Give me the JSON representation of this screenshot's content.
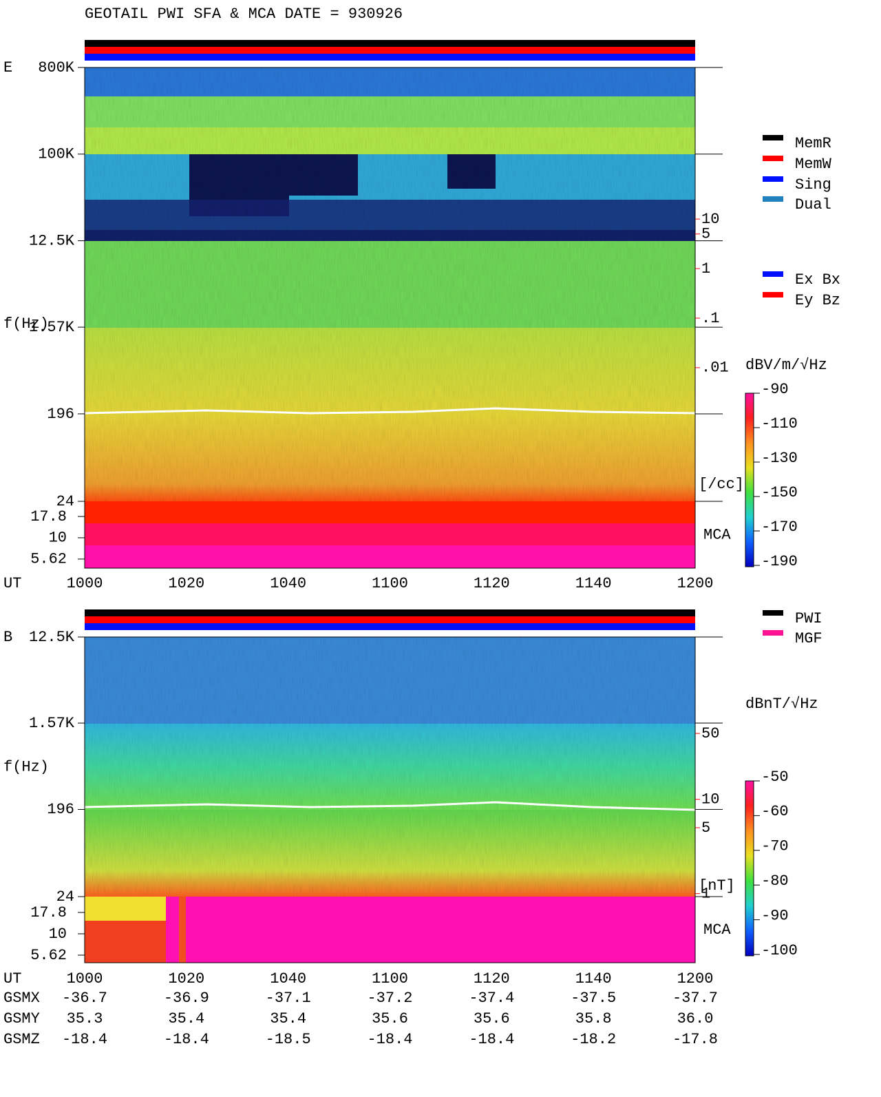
{
  "title": "GEOTAIL  PWI SFA & MCA   DATE = 930926",
  "chart_data": [
    {
      "type": "spectrogram",
      "panel_label": "E",
      "y_label": "f(Hz)",
      "x_label": "UT",
      "log_y": true,
      "categories": [
        "1000",
        "1020",
        "1040",
        "1100",
        "1120",
        "1140",
        "1200"
      ],
      "ylim": [
        24,
        800000
      ],
      "yticks": [
        {
          "value": 800000,
          "label": "800K"
        },
        {
          "value": 100000,
          "label": "100K"
        },
        {
          "value": 12500,
          "label": "12.5K"
        },
        {
          "value": 1570,
          "label": "1.57K"
        },
        196,
        24
      ],
      "mca_label": "MCA",
      "mca_ylim": [
        4.4,
        26.8
      ],
      "mca_yticks": [
        17.8,
        10,
        5.62
      ],
      "density_unit": "[/cc]",
      "density_color": "#ff0000",
      "density_ylim": [
        2e-05,
        11500
      ],
      "density_yticks": [
        10,
        5,
        1,
        {
          "value": 0.1,
          "label": ".1"
        },
        {
          "value": 0.01,
          "label": ".01"
        }
      ],
      "colorbar": {
        "label": "dBV/m/√Hz",
        "clim": [
          -190,
          -90
        ],
        "ticks": [
          -90,
          -110,
          -130,
          -150,
          -170,
          -190
        ]
      },
      "legends": [
        [
          {
            "name": "MemR",
            "color": "#000000"
          },
          {
            "name": "MemW",
            "color": "#ff0000"
          },
          {
            "name": "Sing",
            "color": "#0010ff"
          },
          {
            "name": "Dual",
            "color": "#2080c0"
          }
        ],
        [
          {
            "name": "Ex Bx",
            "color": "#0010ff"
          },
          {
            "name": "Ey Bz",
            "color": "#ff0000"
          }
        ]
      ]
    },
    {
      "type": "spectrogram",
      "panel_label": "B",
      "y_label": "f(Hz)",
      "x_label": "UT",
      "log_y": true,
      "categories": [
        "1000",
        "1020",
        "1040",
        "1100",
        "1120",
        "1140",
        "1200"
      ],
      "ylim": [
        24,
        12500
      ],
      "yticks": [
        {
          "value": 12500,
          "label": "12.5K"
        },
        {
          "value": 1570,
          "label": "1.57K"
        },
        196,
        24
      ],
      "mca_label": "MCA",
      "mca_ylim": [
        4.58,
        27.3
      ],
      "mca_yticks": [
        17.8,
        10,
        5.62
      ],
      "density_unit": "[nT]",
      "density_color": "#ff0000",
      "density_ylim": [
        0.93,
        526
      ],
      "density_yticks": [
        50,
        10,
        5,
        1
      ],
      "colorbar": {
        "label": "dBnT/√Hz",
        "clim": [
          -100,
          -50
        ],
        "ticks": [
          -50,
          -60,
          -70,
          -80,
          -90,
          -100
        ]
      },
      "legends": [
        [
          {
            "name": "PWI",
            "color": "#000000"
          },
          {
            "name": "MGF",
            "color": "#ff1493"
          }
        ]
      ]
    }
  ],
  "coordinates": {
    "rows": [
      {
        "label": "GSMX",
        "values": [
          "-36.7",
          "-36.9",
          "-37.1",
          "-37.2",
          "-37.4",
          "-37.5",
          "-37.7"
        ]
      },
      {
        "label": "GSMY",
        "values": [
          "35.3",
          "35.4",
          "35.4",
          "35.6",
          "35.6",
          "35.8",
          "36.0"
        ]
      },
      {
        "label": "GSMZ",
        "values": [
          "-18.4",
          "-18.4",
          "-18.5",
          "-18.4",
          "-18.4",
          "-18.2",
          "-17.8"
        ]
      }
    ]
  }
}
